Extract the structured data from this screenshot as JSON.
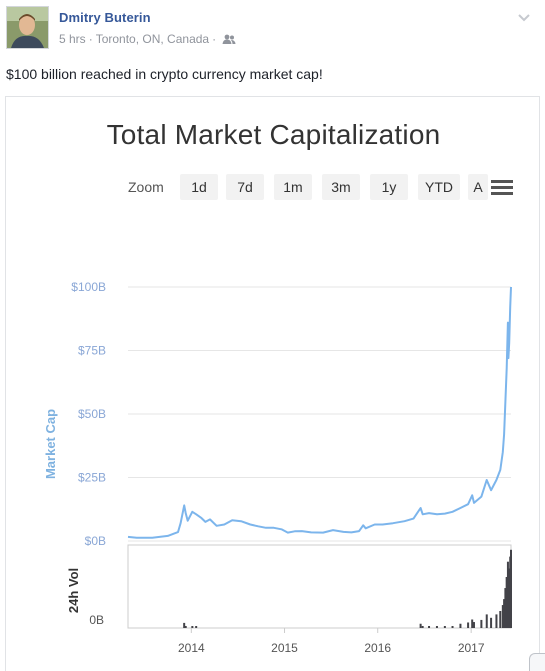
{
  "post": {
    "author": "Dmitry Buterin",
    "time": "5 hrs",
    "location": "Toronto, ON, Canada",
    "privacy_icon": "friends-icon",
    "text": "$100 billion reached in crypto currency market cap!"
  },
  "colors": {
    "link": "#365899",
    "meta": "#90949c",
    "series": "#7cb5ec",
    "volume": "#434348"
  },
  "zoom": {
    "label": "Zoom",
    "buttons": [
      "1d",
      "7d",
      "1m",
      "3m",
      "1y",
      "YTD",
      "A"
    ]
  },
  "chart_data": {
    "type": "line",
    "title": "Total Market Capitalization",
    "ylabel": "Market Cap",
    "volume_label": "24h Vol",
    "y_ticks": [
      "$0B",
      "$25B",
      "$50B",
      "$75B",
      "$100B"
    ],
    "y_tick_values": [
      0,
      25,
      50,
      75,
      100
    ],
    "ylim": [
      0,
      100
    ],
    "x_ticks": [
      "2014",
      "2015",
      "2016",
      "2017"
    ],
    "volume_tick": "0B",
    "grid": true,
    "legend": "none",
    "series": [
      {
        "units": "billions USD",
        "points": [
          [
            "2013-04-28",
            1.6
          ],
          [
            "2013-06-01",
            1.3
          ],
          [
            "2013-08-01",
            1.3
          ],
          [
            "2013-10-01",
            2.0
          ],
          [
            "2013-11-10",
            3.5
          ],
          [
            "2013-11-20",
            7.0
          ],
          [
            "2013-12-04",
            14.0
          ],
          [
            "2013-12-10",
            11.0
          ],
          [
            "2013-12-18",
            8.0
          ],
          [
            "2014-01-05",
            11.5
          ],
          [
            "2014-01-20",
            10.5
          ],
          [
            "2014-02-10",
            9.0
          ],
          [
            "2014-02-25",
            7.5
          ],
          [
            "2014-03-15",
            8.5
          ],
          [
            "2014-04-10",
            6.0
          ],
          [
            "2014-05-10",
            6.5
          ],
          [
            "2014-06-10",
            8.2
          ],
          [
            "2014-07-15",
            7.8
          ],
          [
            "2014-08-20",
            6.5
          ],
          [
            "2014-09-20",
            5.8
          ],
          [
            "2014-10-20",
            5.2
          ],
          [
            "2014-11-20",
            5.2
          ],
          [
            "2014-12-20",
            4.6
          ],
          [
            "2015-01-14",
            3.3
          ],
          [
            "2015-02-10",
            3.8
          ],
          [
            "2015-03-10",
            3.9
          ],
          [
            "2015-04-15",
            3.4
          ],
          [
            "2015-06-01",
            3.3
          ],
          [
            "2015-07-10",
            4.3
          ],
          [
            "2015-08-20",
            3.6
          ],
          [
            "2015-09-20",
            3.4
          ],
          [
            "2015-10-20",
            3.9
          ],
          [
            "2015-11-05",
            6.2
          ],
          [
            "2015-11-15",
            5.0
          ],
          [
            "2015-12-20",
            6.5
          ],
          [
            "2016-01-20",
            6.5
          ],
          [
            "2016-03-01",
            7.0
          ],
          [
            "2016-04-15",
            7.8
          ],
          [
            "2016-05-20",
            8.8
          ],
          [
            "2016-06-17",
            13.0
          ],
          [
            "2016-06-25",
            10.5
          ],
          [
            "2016-07-20",
            11.0
          ],
          [
            "2016-08-20",
            10.5
          ],
          [
            "2016-09-20",
            10.8
          ],
          [
            "2016-10-20",
            11.5
          ],
          [
            "2016-11-20",
            13.0
          ],
          [
            "2016-12-20",
            14.5
          ],
          [
            "2017-01-05",
            18.0
          ],
          [
            "2017-01-12",
            15.0
          ],
          [
            "2017-02-10",
            17.5
          ],
          [
            "2017-03-03",
            24.0
          ],
          [
            "2017-03-20",
            20.0
          ],
          [
            "2017-04-10",
            24.0
          ],
          [
            "2017-04-25",
            28.0
          ],
          [
            "2017-05-05",
            35.0
          ],
          [
            "2017-05-10",
            42.0
          ],
          [
            "2017-05-15",
            55.0
          ],
          [
            "2017-05-20",
            68.0
          ],
          [
            "2017-05-25",
            86.0
          ],
          [
            "2017-05-27",
            72.0
          ],
          [
            "2017-05-30",
            78.0
          ],
          [
            "2017-06-03",
            92.0
          ],
          [
            "2017-06-06",
            100.0
          ]
        ]
      }
    ]
  }
}
